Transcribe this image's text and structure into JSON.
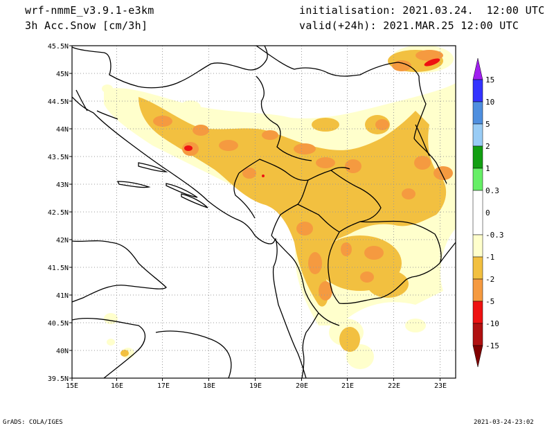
{
  "header": {
    "model": "wrf-nmmE_v3.9.1-e3km",
    "variable": "3h Acc.Snow [cm/3h]",
    "initialisation": "initialisation: 2021.03.24.  12:00 UTC",
    "valid": "valid(+24h): 2021.MAR.25 12:00 UTC"
  },
  "map": {
    "lon_ticks": [
      "15E",
      "16E",
      "17E",
      "18E",
      "19E",
      "20E",
      "21E",
      "22E",
      "23E"
    ],
    "lat_ticks": [
      "45.5N",
      "45N",
      "44.5N",
      "44N",
      "43.5N",
      "43N",
      "42.5N",
      "42N",
      "41.5N",
      "41N",
      "40.5N",
      "40N",
      "39.5N"
    ],
    "grid": true
  },
  "colorbar": {
    "labels": [
      "15",
      "10",
      "5",
      "2",
      "1",
      "0.3",
      "0",
      "-0.3",
      "-1",
      "-2",
      "-5",
      "-10",
      "-15"
    ],
    "colors": {
      "top_arrow": "#a020f0",
      "c1": "#3333ff",
      "c2": "#4f8fdf",
      "c3": "#99ccf5",
      "c4": "#129f12",
      "c5": "#66ef66",
      "neutral": "#ffffff",
      "n1": "#ffffcc",
      "n2": "#f2c040",
      "n3": "#f59a40",
      "n4": "#ee1111",
      "n5": "#b01010",
      "bottom_arrow": "#800000"
    }
  },
  "footer": {
    "left": "GrADS: COLA/IGES",
    "right": "2021-03-24-23:02"
  }
}
